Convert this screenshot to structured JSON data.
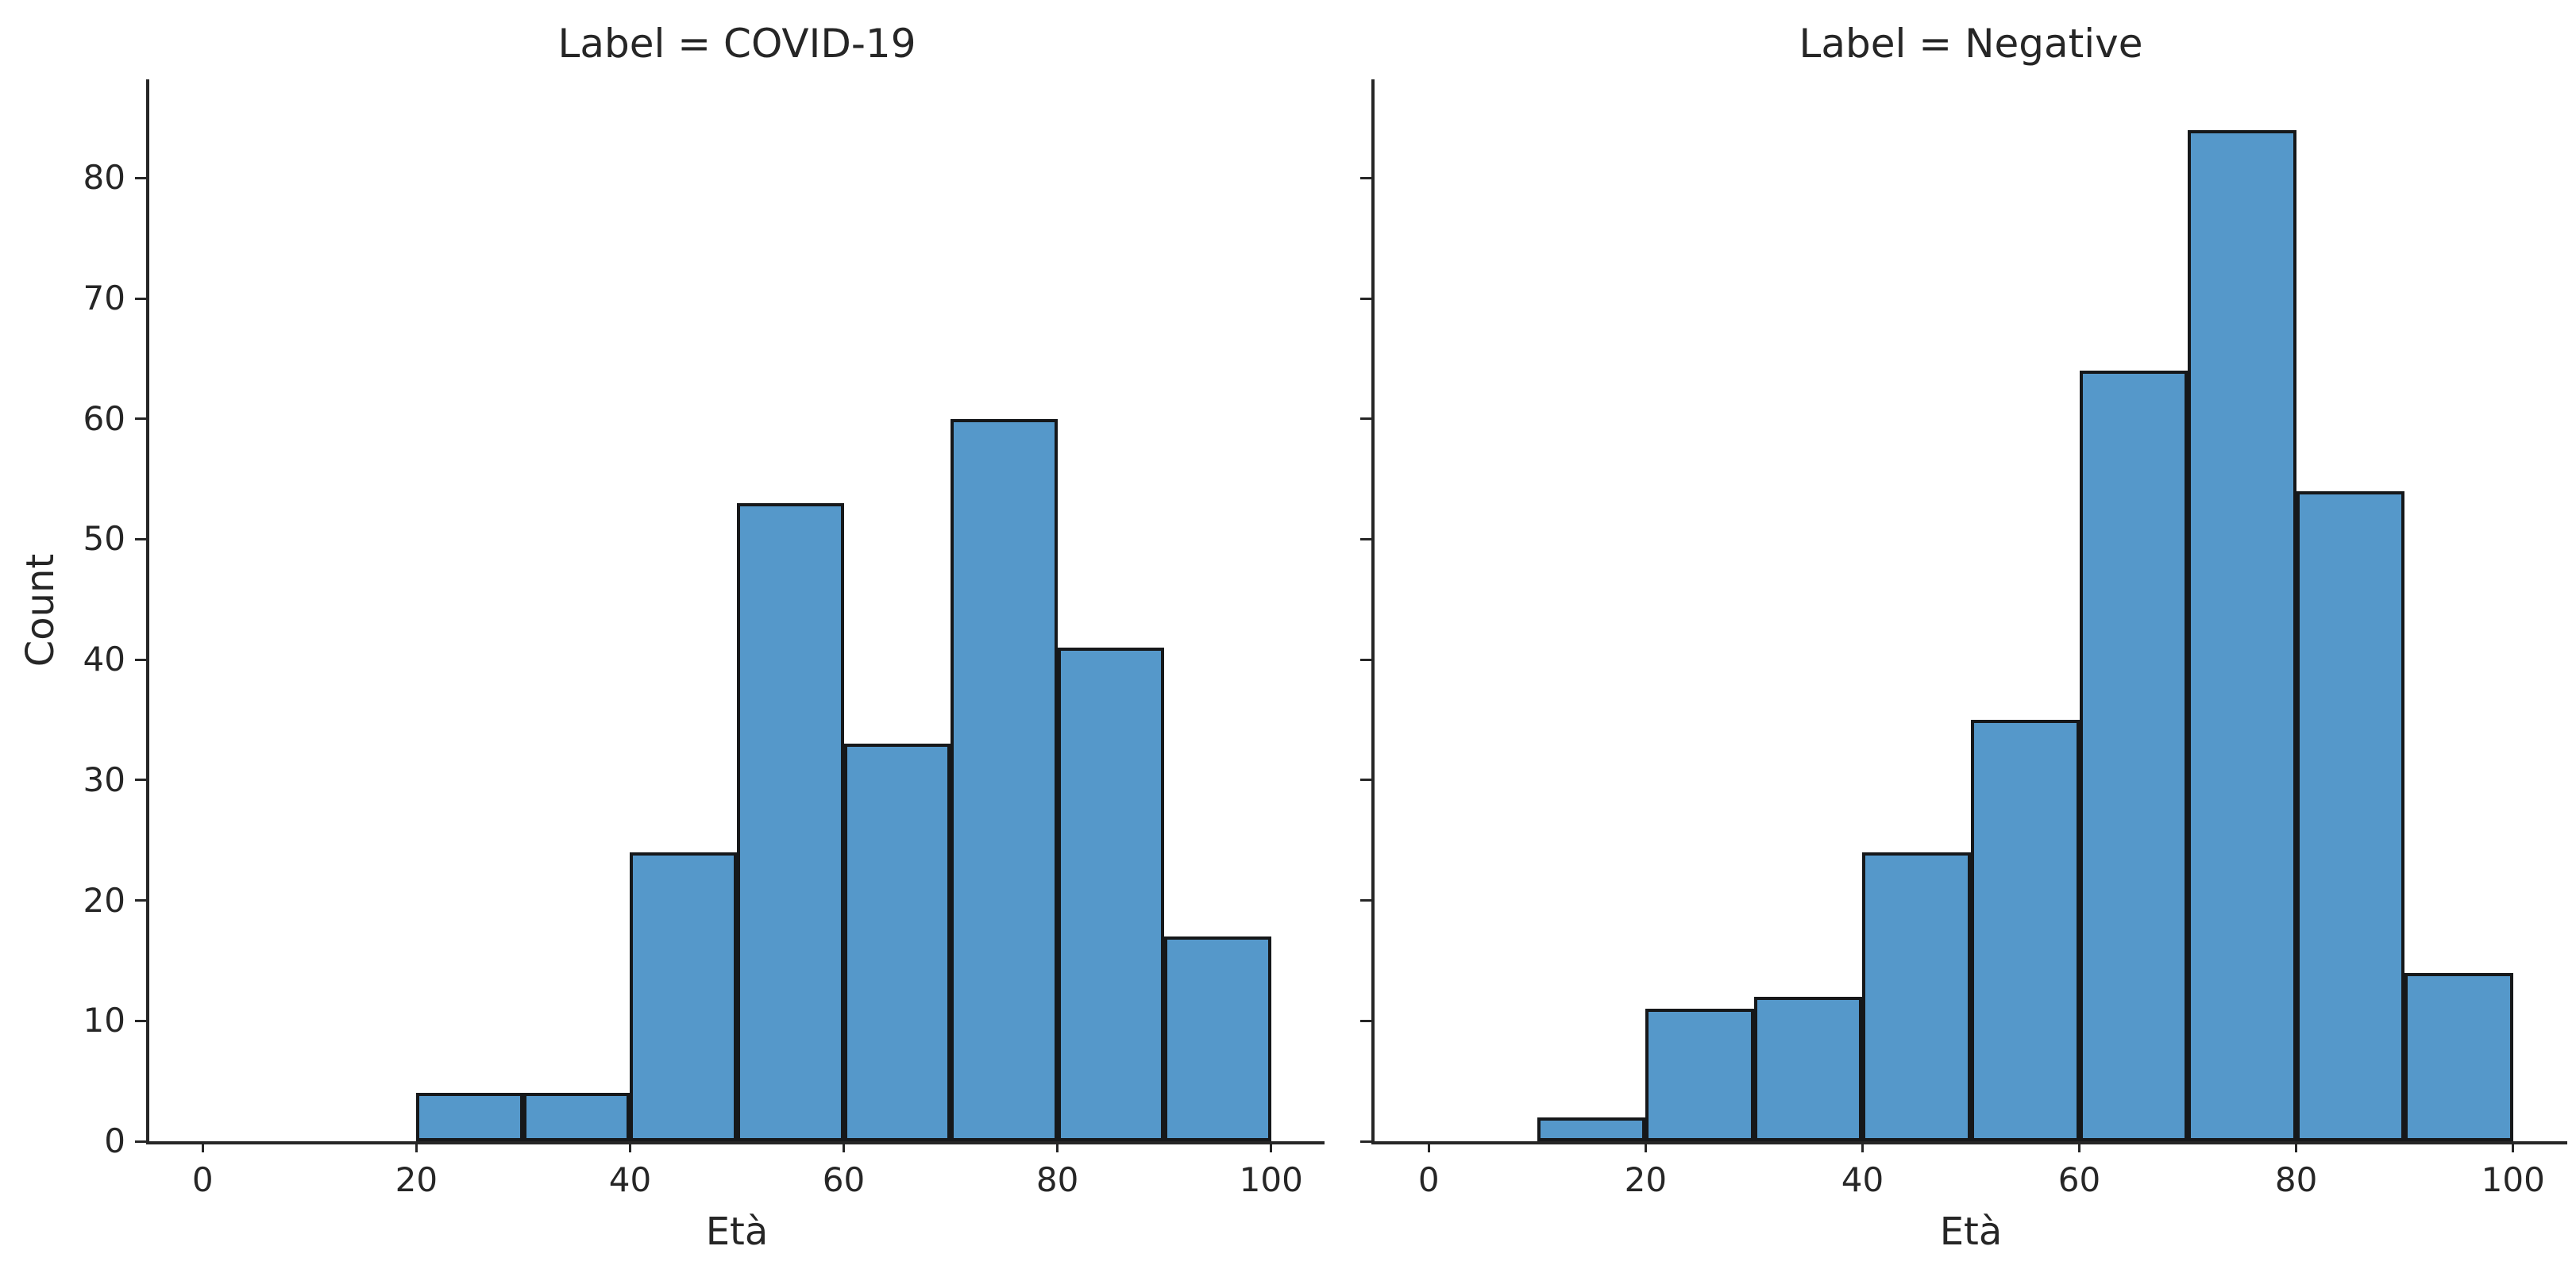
{
  "figure": {
    "background": "#ffffff",
    "text_color": "#262626",
    "spine_color": "#262626",
    "bar_fill": "#5598ca",
    "bar_edge": "#16181a"
  },
  "y_axis_label": "Count",
  "x_axis_label": "Età",
  "chart_data": [
    {
      "type": "bar",
      "subtype": "histogram",
      "title": "Label = COVID-19",
      "xlabel": "Età",
      "ylabel": "Count",
      "bin_edges": [
        20,
        30,
        40,
        50,
        60,
        70,
        80,
        90,
        100
      ],
      "counts": [
        4,
        4,
        24,
        53,
        33,
        60,
        41,
        17
      ],
      "x_ticks": [
        0,
        20,
        40,
        60,
        80,
        100
      ],
      "y_ticks": [
        0,
        10,
        20,
        30,
        40,
        50,
        60,
        70,
        80
      ],
      "xlim": [
        -5,
        105
      ],
      "ylim": [
        0,
        88.2
      ],
      "show_y_tick_labels": true,
      "grid": false,
      "legend": null
    },
    {
      "type": "bar",
      "subtype": "histogram",
      "title": "Label = Negative",
      "xlabel": "Età",
      "ylabel": "Count",
      "bin_edges": [
        10,
        20,
        30,
        40,
        50,
        60,
        70,
        80,
        90,
        100
      ],
      "counts": [
        2,
        11,
        12,
        24,
        35,
        64,
        84,
        54,
        14
      ],
      "x_ticks": [
        0,
        20,
        40,
        60,
        80,
        100
      ],
      "y_ticks": [
        0,
        10,
        20,
        30,
        40,
        50,
        60,
        70,
        80
      ],
      "xlim": [
        -5,
        105
      ],
      "ylim": [
        0,
        88.2
      ],
      "show_y_tick_labels": false,
      "grid": false,
      "legend": null
    }
  ]
}
